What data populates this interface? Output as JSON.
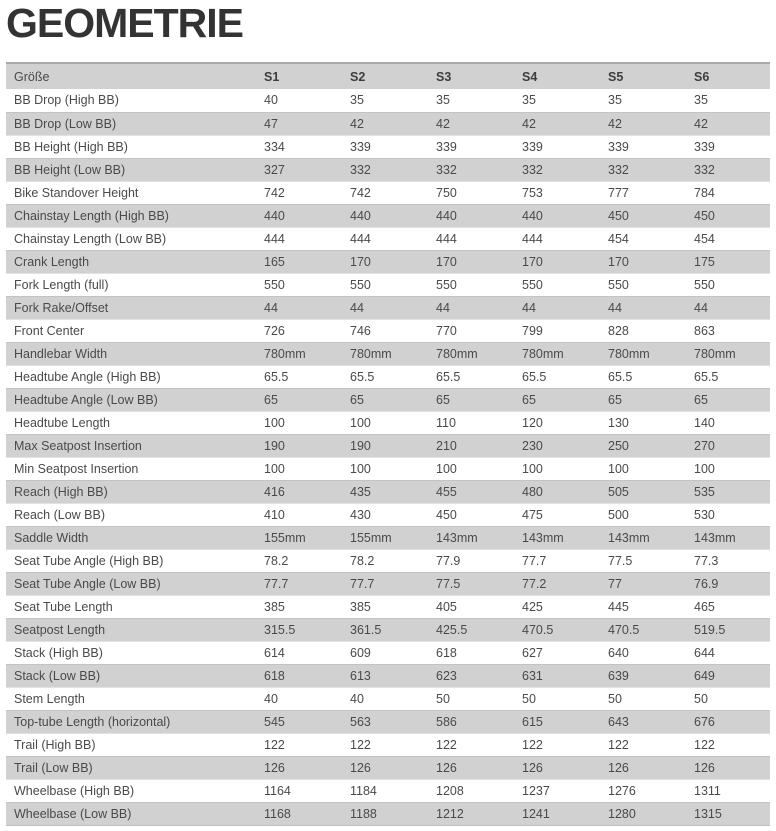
{
  "page_title": "GEOMETRIE",
  "colors": {
    "header_bg": "#d1d1d1",
    "row_alt_bg": "#d1d1d1",
    "title_text": "#333333",
    "body_text": "#4a4a4a",
    "table_top_border": "#a9a9a9"
  },
  "chart_data": {
    "type": "table",
    "title": "GEOMETRIE",
    "header": {
      "label_column": "Größe",
      "size_columns": [
        "S1",
        "S2",
        "S3",
        "S4",
        "S5",
        "S6"
      ]
    },
    "rows": [
      {
        "label": "BB Drop (High BB)",
        "values": [
          "40",
          "35",
          "35",
          "35",
          "35",
          "35"
        ]
      },
      {
        "label": "BB Drop (Low BB)",
        "values": [
          "47",
          "42",
          "42",
          "42",
          "42",
          "42"
        ]
      },
      {
        "label": "BB Height (High BB)",
        "values": [
          "334",
          "339",
          "339",
          "339",
          "339",
          "339"
        ]
      },
      {
        "label": "BB Height (Low BB)",
        "values": [
          "327",
          "332",
          "332",
          "332",
          "332",
          "332"
        ]
      },
      {
        "label": "Bike Standover Height",
        "values": [
          "742",
          "742",
          "750",
          "753",
          "777",
          "784"
        ]
      },
      {
        "label": "Chainstay Length (High BB)",
        "values": [
          "440",
          "440",
          "440",
          "440",
          "450",
          "450"
        ]
      },
      {
        "label": "Chainstay Length (Low BB)",
        "values": [
          "444",
          "444",
          "444",
          "444",
          "454",
          "454"
        ]
      },
      {
        "label": "Crank Length",
        "values": [
          "165",
          "170",
          "170",
          "170",
          "170",
          "175"
        ]
      },
      {
        "label": "Fork Length (full)",
        "values": [
          "550",
          "550",
          "550",
          "550",
          "550",
          "550"
        ]
      },
      {
        "label": "Fork Rake/Offset",
        "values": [
          "44",
          "44",
          "44",
          "44",
          "44",
          "44"
        ]
      },
      {
        "label": "Front Center",
        "values": [
          "726",
          "746",
          "770",
          "799",
          "828",
          "863"
        ]
      },
      {
        "label": "Handlebar Width",
        "values": [
          "780mm",
          "780mm",
          "780mm",
          "780mm",
          "780mm",
          "780mm"
        ]
      },
      {
        "label": "Headtube Angle (High BB)",
        "values": [
          "65.5",
          "65.5",
          "65.5",
          "65.5",
          "65.5",
          "65.5"
        ]
      },
      {
        "label": "Headtube Angle (Low BB)",
        "values": [
          "65",
          "65",
          "65",
          "65",
          "65",
          "65"
        ]
      },
      {
        "label": "Headtube Length",
        "values": [
          "100",
          "100",
          "110",
          "120",
          "130",
          "140"
        ]
      },
      {
        "label": "Max Seatpost Insertion",
        "values": [
          "190",
          "190",
          "210",
          "230",
          "250",
          "270"
        ]
      },
      {
        "label": "Min Seatpost Insertion",
        "values": [
          "100",
          "100",
          "100",
          "100",
          "100",
          "100"
        ]
      },
      {
        "label": "Reach (High BB)",
        "values": [
          "416",
          "435",
          "455",
          "480",
          "505",
          "535"
        ]
      },
      {
        "label": "Reach (Low BB)",
        "values": [
          "410",
          "430",
          "450",
          "475",
          "500",
          "530"
        ]
      },
      {
        "label": "Saddle Width",
        "values": [
          "155mm",
          "155mm",
          "143mm",
          "143mm",
          "143mm",
          "143mm"
        ]
      },
      {
        "label": "Seat Tube Angle (High BB)",
        "values": [
          "78.2",
          "78.2",
          "77.9",
          "77.7",
          "77.5",
          "77.3"
        ]
      },
      {
        "label": "Seat Tube Angle (Low BB)",
        "values": [
          "77.7",
          "77.7",
          "77.5",
          "77.2",
          "77",
          "76.9"
        ]
      },
      {
        "label": "Seat Tube Length",
        "values": [
          "385",
          "385",
          "405",
          "425",
          "445",
          "465"
        ]
      },
      {
        "label": "Seatpost Length",
        "values": [
          "315.5",
          "361.5",
          "425.5",
          "470.5",
          "470.5",
          "519.5"
        ]
      },
      {
        "label": "Stack (High BB)",
        "values": [
          "614",
          "609",
          "618",
          "627",
          "640",
          "644"
        ]
      },
      {
        "label": "Stack (Low BB)",
        "values": [
          "618",
          "613",
          "623",
          "631",
          "639",
          "649"
        ]
      },
      {
        "label": "Stem Length",
        "values": [
          "40",
          "40",
          "50",
          "50",
          "50",
          "50"
        ]
      },
      {
        "label": "Top-tube Length (horizontal)",
        "values": [
          "545",
          "563",
          "586",
          "615",
          "643",
          "676"
        ]
      },
      {
        "label": "Trail (High BB)",
        "values": [
          "122",
          "122",
          "122",
          "122",
          "122",
          "122"
        ]
      },
      {
        "label": "Trail (Low BB)",
        "values": [
          "126",
          "126",
          "126",
          "126",
          "126",
          "126"
        ]
      },
      {
        "label": "Wheelbase (High BB)",
        "values": [
          "1164",
          "1184",
          "1208",
          "1237",
          "1276",
          "1311"
        ]
      },
      {
        "label": "Wheelbase (Low BB)",
        "values": [
          "1168",
          "1188",
          "1212",
          "1241",
          "1280",
          "1315"
        ]
      }
    ]
  }
}
